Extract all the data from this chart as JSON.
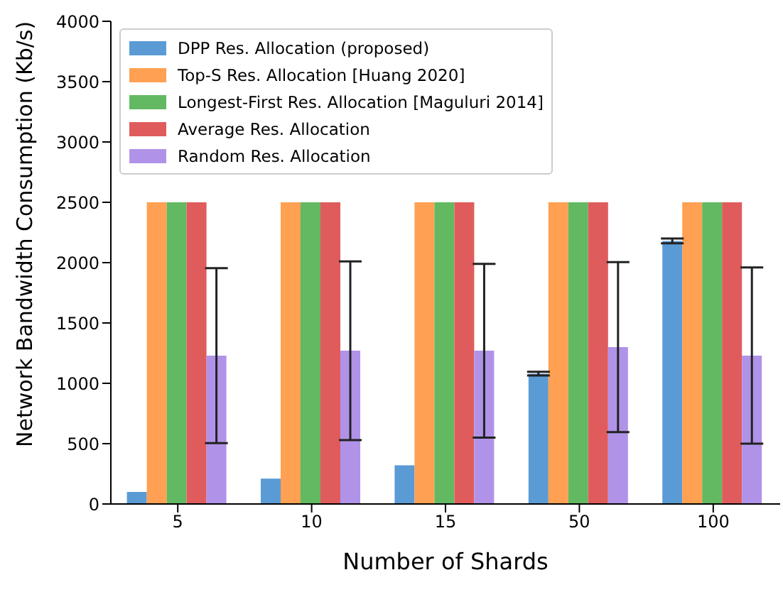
{
  "chart_data": {
    "type": "bar",
    "xlabel": "Number of Shards",
    "ylabel": "Network Bandwidth Consumption (Kb/s)",
    "categories": [
      "5",
      "10",
      "15",
      "50",
      "100"
    ],
    "series": [
      {
        "name": "DPP Res. Allocation (proposed)",
        "color": "#5b9bd5",
        "values": [
          100,
          210,
          320,
          1080,
          2180
        ],
        "errors": [
          null,
          null,
          null,
          15,
          20
        ]
      },
      {
        "name": "Top-S Res. Allocation [Huang 2020]",
        "color": "#ffa052",
        "values": [
          2500,
          2500,
          2500,
          2500,
          2500
        ]
      },
      {
        "name": "Longest-First Res. Allocation [Maguluri 2014]",
        "color": "#62b962",
        "values": [
          2500,
          2500,
          2500,
          2500,
          2500
        ]
      },
      {
        "name": "Average Res. Allocation",
        "color": "#e05c5c",
        "values": [
          2500,
          2500,
          2500,
          2500,
          2500
        ]
      },
      {
        "name": "Random Res. Allocation",
        "color": "#b093e8",
        "values": [
          1230,
          1270,
          1270,
          1300,
          1230
        ],
        "errors": [
          725,
          740,
          720,
          705,
          730
        ]
      }
    ],
    "ylim": [
      0,
      4000
    ],
    "yticks": [
      0,
      500,
      1000,
      1500,
      2000,
      2500,
      3000,
      3500,
      4000
    ],
    "grid": false,
    "legend": "top left"
  }
}
